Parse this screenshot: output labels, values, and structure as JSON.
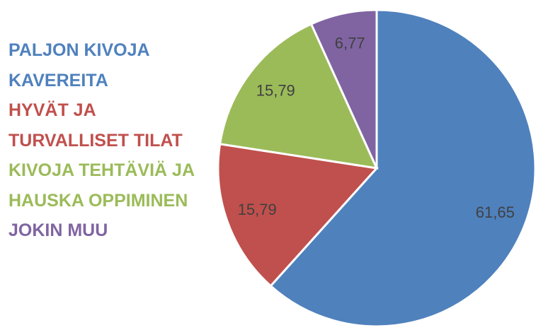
{
  "chart_data": {
    "type": "pie",
    "categories": [
      "PALJON KIVOJA KAVEREITA",
      "HYVÄT JA TURVALLISET TILAT",
      "KIVOJA TEHTÄVIÄ JA HAUSKA OPPIMINEN",
      "JOKIN MUU"
    ],
    "values": [
      61.65,
      15.79,
      15.79,
      6.77
    ],
    "value_labels": [
      "61,65",
      "15,79",
      "15,79",
      "6,77"
    ],
    "colors": [
      "#4f81bd",
      "#c0504d",
      "#9bbb59",
      "#8064a2"
    ],
    "legend": "left"
  }
}
